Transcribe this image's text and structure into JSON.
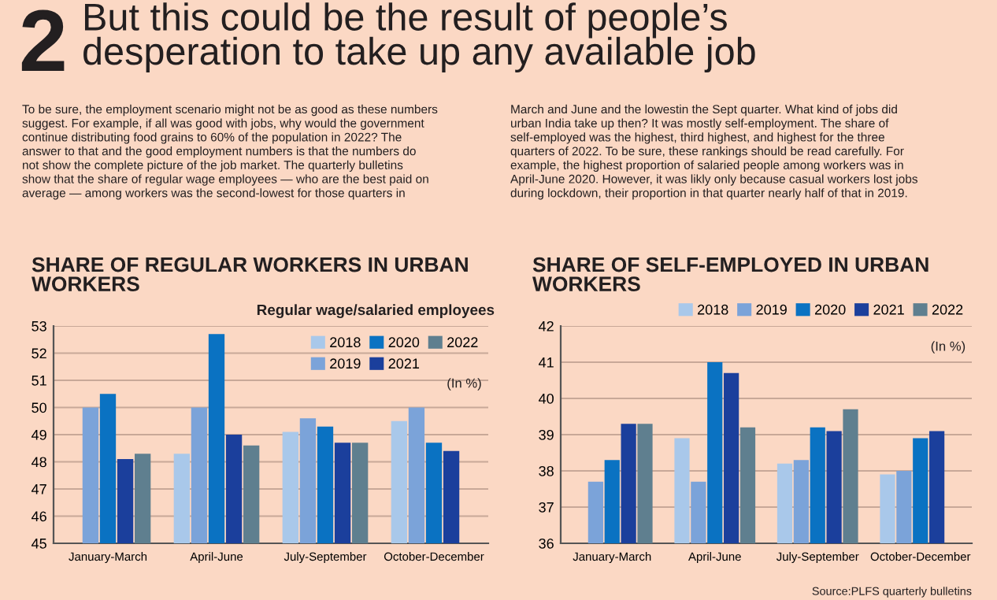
{
  "chart_data": [
    {
      "type": "other",
      "title": "But this could be the result of people’s\ndesperation to take up any available job",
      "annotations": [
        "2",
        "To be sure, the employment scenario might not be as good as these numbers\nsuggest. For example, if all was good with jobs, why would the government\ncontinue distributing food grains to 60% of the population in 2022? The\nanswer to that and the good employment numbers is that the numbers do\nnot show the complete picture of the job market. The quarterly bulletins\nshow that the share of regular wage employees — who are the best paid on\naverage — among workers was the second-lowest for those quarters in",
        "March and June and the lowestin the Sept quarter. What kind of jobs did\nurban India take up then? It was mostly self-employment. The share of\nself-employed was the highest, third highest, and highest for the three\nquarters of 2022. To be sure, these rankings should be read carefully. For\nexample, the highest proportion of salaried people among workers was in\nApril-June 2020. However, it was likly only because casual workers lost jobs\nduring lockdown, their proportion in that quarter nearly half of that in 2019."
      ]
    },
    {
      "type": "bar",
      "title": "SHARE OF REGULAR WORKERS IN URBAN\nWORKERS",
      "subtitle": "Regular wage/salaried employees",
      "categories": [
        "January-March",
        "April-June",
        "July-September",
        "October-December"
      ],
      "series": [
        {
          "name": "2018",
          "color": "#a9c8ea",
          "values": [
            null,
            48.3,
            49.1,
            49.5
          ]
        },
        {
          "name": "2019",
          "color": "#7ba3d9",
          "values": [
            50.0,
            50.0,
            49.6,
            50.0
          ]
        },
        {
          "name": "2020",
          "color": "#0a72c2",
          "values": [
            50.5,
            52.7,
            49.3,
            48.7
          ]
        },
        {
          "name": "2021",
          "color": "#1b3f9c",
          "values": [
            48.1,
            49.0,
            48.7,
            48.4
          ]
        },
        {
          "name": "2022",
          "color": "#5f7f8f",
          "values": [
            48.3,
            48.6,
            48.7,
            null
          ]
        }
      ],
      "ylim": [
        45,
        53
      ],
      "yticks": [
        45,
        46,
        47,
        48,
        49,
        50,
        51,
        52,
        53
      ],
      "grid": "y",
      "legend": "top right",
      "annotations": [
        "(In %)"
      ]
    },
    {
      "type": "bar",
      "title": "SHARE OF SELF-EMPLOYED IN URBAN\nWORKERS",
      "categories": [
        "January-March",
        "April-June",
        "July-September",
        "October-December"
      ],
      "series": [
        {
          "name": "2018",
          "color": "#a9c8ea",
          "values": [
            null,
            38.9,
            38.2,
            37.9
          ]
        },
        {
          "name": "2019",
          "color": "#7ba3d9",
          "values": [
            37.7,
            37.7,
            38.3,
            38.0
          ]
        },
        {
          "name": "2020",
          "color": "#0a72c2",
          "values": [
            38.3,
            41.0,
            39.2,
            38.9
          ]
        },
        {
          "name": "2021",
          "color": "#1b3f9c",
          "values": [
            39.3,
            40.7,
            39.1,
            39.1
          ]
        },
        {
          "name": "2022",
          "color": "#5f7f8f",
          "values": [
            39.3,
            39.2,
            39.7,
            null
          ]
        }
      ],
      "ylim": [
        36,
        42
      ],
      "yticks": [
        36,
        37,
        38,
        39,
        40,
        41,
        42
      ],
      "grid": "y",
      "legend": "top",
      "annotations": [
        "(In %)",
        "Source:PLFS quarterly bulletins"
      ]
    }
  ]
}
